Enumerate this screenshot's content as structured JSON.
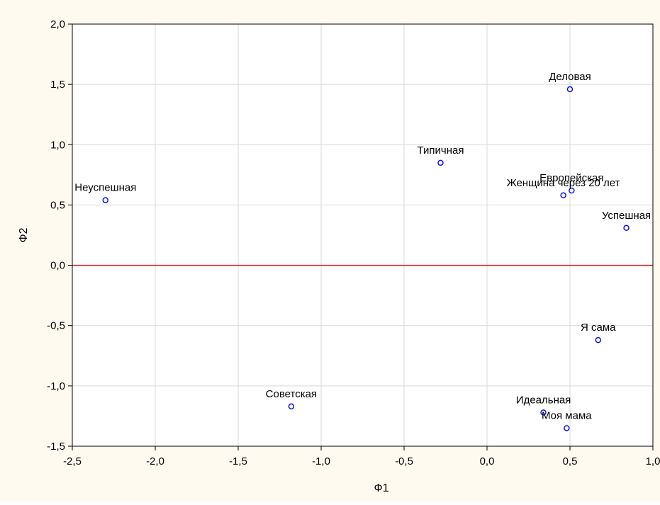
{
  "chart_data": {
    "type": "scatter",
    "title": "",
    "xlabel": "Ф1",
    "ylabel": "Ф2",
    "xlim": [
      -2.5,
      1.0
    ],
    "ylim": [
      -1.5,
      2.0
    ],
    "xticks": [
      -2.5,
      -2.0,
      -1.5,
      -1.0,
      -0.5,
      0.0,
      0.5,
      1.0
    ],
    "yticks": [
      -1.5,
      -1.0,
      -0.5,
      0.0,
      0.5,
      1.0,
      1.5,
      2.0
    ],
    "xtick_labels": [
      "-2,5",
      "-2,0",
      "-1,5",
      "-1,0",
      "-0,5",
      "0,0",
      "0,5",
      "1,0"
    ],
    "ytick_labels": [
      "-1,5",
      "-1,0",
      "-0,5",
      "0,0",
      "0,5",
      "1,0",
      "1,5",
      "2,0"
    ],
    "grid": true,
    "reference_line": {
      "y": 0.0,
      "color": "#d42020"
    },
    "marker_color": "#1010e0",
    "points": [
      {
        "label": "Деловая",
        "x": 0.5,
        "y": 1.46
      },
      {
        "label": "Типичная",
        "x": -0.28,
        "y": 0.85
      },
      {
        "label": "Европейская",
        "x": 0.51,
        "y": 0.62
      },
      {
        "label": "Женщина через 20 лет",
        "x": 0.46,
        "y": 0.58
      },
      {
        "label": "Неуспешная",
        "x": -2.3,
        "y": 0.54
      },
      {
        "label": "Успешная",
        "x": 0.84,
        "y": 0.31
      },
      {
        "label": "Я сама",
        "x": 0.67,
        "y": -0.62
      },
      {
        "label": "Советская",
        "x": -1.18,
        "y": -1.17
      },
      {
        "label": "Идеальная",
        "x": 0.34,
        "y": -1.22
      },
      {
        "label": "Моя мама",
        "x": 0.48,
        "y": -1.35
      }
    ]
  }
}
